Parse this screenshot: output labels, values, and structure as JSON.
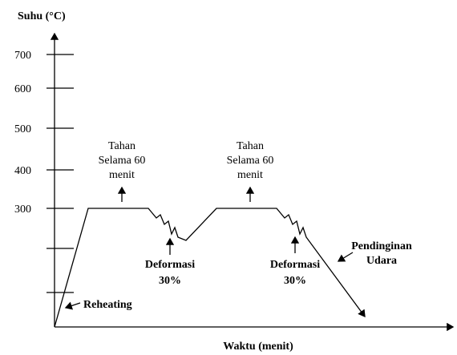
{
  "y_axis": {
    "label": "Suhu (°C)",
    "ticks": [
      "700",
      "600",
      "500",
      "400",
      "300"
    ]
  },
  "x_axis": {
    "label": "Waktu (menit)"
  },
  "annotations": {
    "hold_1": [
      "Tahan",
      "Selama 60",
      "menit"
    ],
    "hold_2": [
      "Tahan",
      "Selama 60",
      "menit"
    ],
    "deform_1": [
      "Deformasi",
      "30%"
    ],
    "deform_2": [
      "Deformasi",
      "30%"
    ],
    "cooling": [
      "Pendinginan",
      "Udara"
    ],
    "reheating": "Reheating"
  }
}
